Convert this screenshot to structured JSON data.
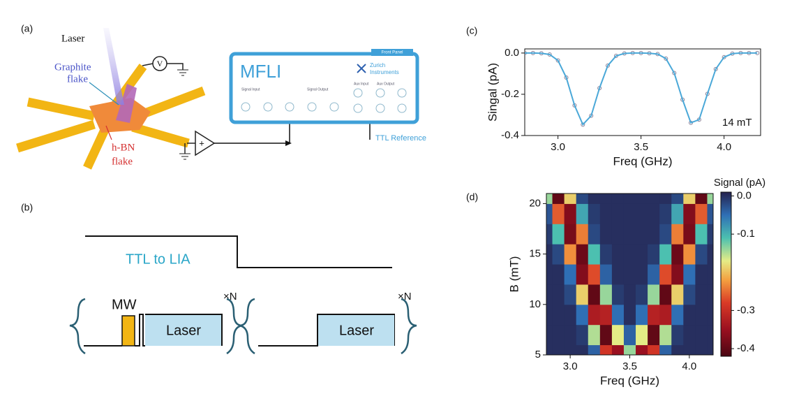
{
  "panels": {
    "a": "(a)",
    "b": "(b)",
    "c": "(c)",
    "d": "(d)"
  },
  "diagram_a": {
    "laser": "Laser",
    "graphite": [
      "Graphite",
      "flake"
    ],
    "voltmeter": "V",
    "hbn": [
      "h-BN",
      "flake"
    ],
    "amplifier": "+",
    "instrument": "MFLI",
    "front_panel": "Front Panel",
    "brand": [
      "Zurich",
      "Instruments"
    ],
    "ports": [
      "Signal Input",
      "Signal Output",
      "Aux Input",
      "Aux Output"
    ],
    "ttl": "TTL Reference"
  },
  "diagram_b": {
    "ttl": "TTL to LIA",
    "mw": "MW",
    "laser": [
      "Laser",
      "Laser"
    ],
    "repeat": [
      "×N",
      "×N"
    ]
  },
  "chart_data": [
    {
      "type": "line",
      "xlabel": "Freq (GHz)",
      "ylabel": "Singal (pA)",
      "annotation": "14 mT",
      "color": "#4aa8d8",
      "marker_color": "#8a8098",
      "x": [
        2.8,
        2.85,
        2.9,
        2.95,
        3.0,
        3.05,
        3.1,
        3.15,
        3.2,
        3.25,
        3.3,
        3.35,
        3.4,
        3.45,
        3.5,
        3.55,
        3.6,
        3.65,
        3.7,
        3.75,
        3.8,
        3.85,
        3.9,
        3.95,
        4.0,
        4.05,
        4.1,
        4.15,
        4.2
      ],
      "values": [
        0.0,
        0.0,
        -0.001,
        -0.007,
        -0.036,
        -0.119,
        -0.254,
        -0.347,
        -0.304,
        -0.17,
        -0.061,
        -0.014,
        -0.002,
        0.0,
        0.0,
        -0.001,
        -0.005,
        -0.027,
        -0.097,
        -0.226,
        -0.338,
        -0.323,
        -0.198,
        -0.078,
        -0.02,
        -0.003,
        0.0,
        0.0,
        0.0
      ],
      "xlim": [
        2.8,
        4.22
      ],
      "ylim": [
        -0.4,
        0.02
      ],
      "xticks": [
        {
          "value": 3,
          "label": "3.0"
        },
        3.5,
        {
          "value": 4,
          "label": "4.0"
        }
      ],
      "yticks": [
        {
          "value": 0,
          "label": "0.0"
        },
        -0.2,
        -0.4
      ]
    },
    {
      "type": "heatmap",
      "xlabel": "Freq (GHz)",
      "ylabel": "B (mT)",
      "x": [
        2.8,
        2.9,
        3.0,
        3.1,
        3.2,
        3.3,
        3.4,
        3.5,
        3.6,
        3.7,
        3.8,
        3.9,
        4.0,
        4.1,
        4.2
      ],
      "y": [
        5,
        7,
        9,
        11,
        13,
        15,
        17,
        19,
        21
      ],
      "z": [
        [
          0,
          0,
          0,
          0,
          -0.04,
          -0.29,
          -0.35,
          -0.14,
          -0.35,
          -0.29,
          -0.04,
          0,
          0,
          0,
          0
        ],
        [
          0,
          0,
          0,
          -0.01,
          -0.15,
          -0.4,
          -0.17,
          -0.04,
          -0.17,
          -0.4,
          -0.15,
          -0.01,
          0,
          0,
          0
        ],
        [
          0,
          0,
          0,
          -0.05,
          -0.33,
          -0.32,
          -0.05,
          0,
          -0.05,
          -0.32,
          -0.33,
          -0.05,
          0,
          0,
          0
        ],
        [
          0,
          0,
          -0.02,
          -0.19,
          -0.4,
          -0.14,
          -0.01,
          0,
          -0.01,
          -0.14,
          -0.4,
          -0.19,
          -0.02,
          0,
          0
        ],
        [
          0,
          0,
          -0.05,
          -0.37,
          -0.27,
          -0.04,
          0,
          0,
          0,
          -0.04,
          -0.27,
          -0.37,
          -0.05,
          0,
          0
        ],
        [
          0,
          -0.02,
          -0.23,
          -0.39,
          -0.11,
          -0.01,
          0,
          0,
          0,
          -0.01,
          -0.11,
          -0.39,
          -0.23,
          -0.02,
          0
        ],
        [
          -0.01,
          -0.11,
          -0.38,
          -0.24,
          -0.02,
          0,
          0,
          0,
          0,
          0,
          -0.02,
          -0.24,
          -0.38,
          -0.11,
          -0.01
        ],
        [
          -0.03,
          -0.26,
          -0.37,
          -0.09,
          -0.01,
          0,
          0,
          0,
          0,
          0,
          -0.01,
          -0.09,
          -0.37,
          -0.26,
          -0.03
        ],
        [
          -0.14,
          -0.4,
          -0.19,
          -0.02,
          0,
          0,
          0,
          0,
          0,
          0,
          0,
          -0.02,
          -0.19,
          -0.4,
          -0.14
        ]
      ],
      "xlim": [
        2.8,
        4.2
      ],
      "ylim": [
        5,
        21
      ],
      "xticks": [
        {
          "value": 3,
          "label": "3.0"
        },
        3.5,
        {
          "value": 4,
          "label": "4.0"
        }
      ],
      "yticks": [
        5,
        10,
        15,
        20
      ],
      "colorbar": {
        "label": "Signal (pA)",
        "lim": [
          -0.42,
          0.01
        ],
        "ticks": [
          {
            "value": 0,
            "label": "0.0"
          },
          -0.1,
          -0.3,
          -0.4
        ]
      },
      "colorscale": [
        {
          "value": -0.42,
          "color": "#4a0612"
        },
        {
          "value": -0.35,
          "color": "#9a1020"
        },
        {
          "value": -0.28,
          "color": "#d93a26"
        },
        {
          "value": -0.22,
          "color": "#f4a040"
        },
        {
          "value": -0.17,
          "color": "#e4ec86"
        },
        {
          "value": -0.11,
          "color": "#4cc0b0"
        },
        {
          "value": -0.05,
          "color": "#2f6fb5"
        },
        {
          "value": 0.01,
          "color": "#25224e"
        }
      ]
    }
  ]
}
